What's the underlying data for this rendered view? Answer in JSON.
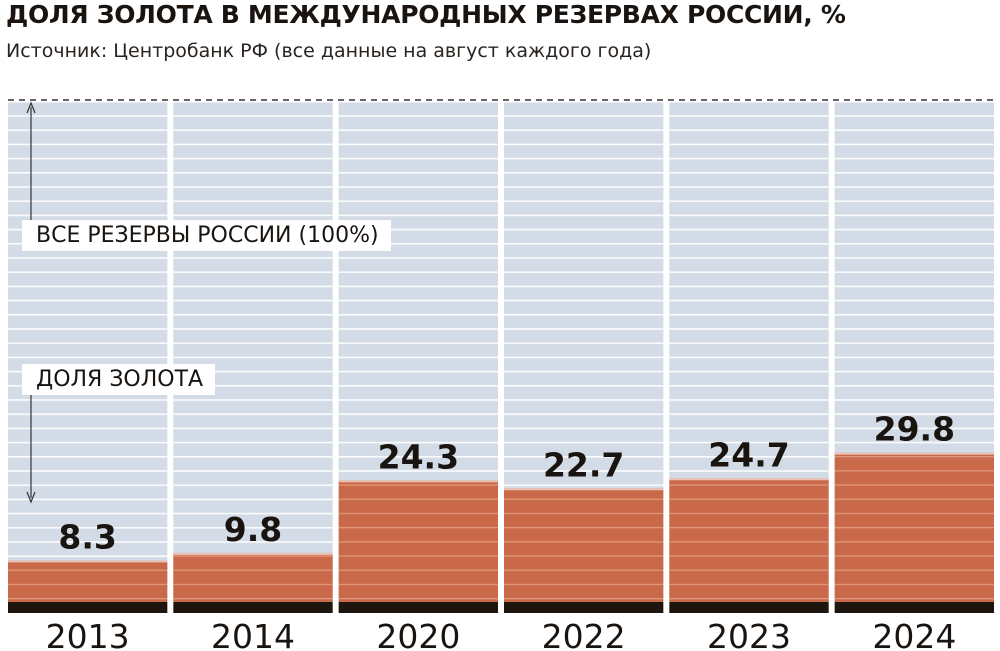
{
  "chart_data": {
    "type": "bar",
    "title": "ДОЛЯ ЗОЛОТА В МЕЖДУНАРОДНЫХ РЕЗЕРВАХ РОССИИ, %",
    "subtitle": "Источник: Центробанк РФ (все данные на август каждого года)",
    "categories": [
      "2013",
      "2014",
      "2020",
      "2022",
      "2023",
      "2024"
    ],
    "values": [
      8.3,
      9.8,
      24.3,
      22.7,
      24.7,
      29.8
    ],
    "value_labels": [
      "8.3",
      "9.8",
      "24.3",
      "22.7",
      "24.7",
      "29.8"
    ],
    "total_value": 100,
    "ylim": [
      0,
      100
    ],
    "annotations": {
      "total_label": "ВСЕ РЕЗЕРВЫ РОССИИ (100%)",
      "gold_label": "ДОЛЯ ЗОЛОТА"
    },
    "grid": false,
    "colors": {
      "background_bar": "#d3dbe6",
      "gold_bar": "#c9694a",
      "base_strip": "#1e150e",
      "stripe": "#ffffff",
      "dashed_line": "#333333"
    }
  }
}
